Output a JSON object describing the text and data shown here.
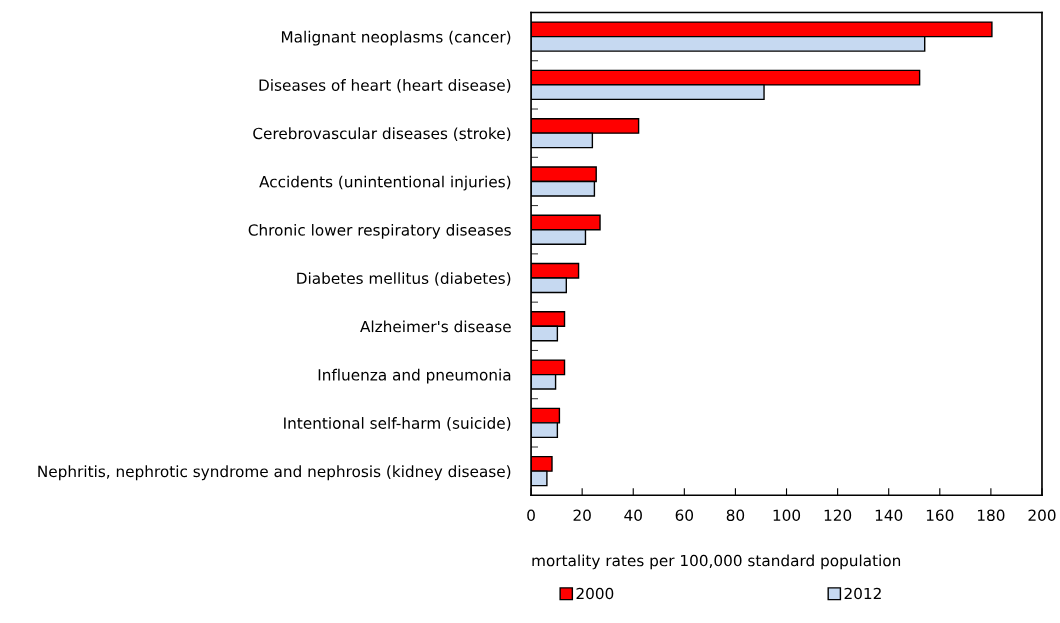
{
  "chart_data": {
    "type": "bar",
    "orientation": "horizontal",
    "xlabel": "mortality rates per 100,000 standard population",
    "categories": [
      "Malignant neoplasms (cancer)",
      "Diseases of heart (heart disease)",
      "Cerebrovascular diseases (stroke)",
      "Accidents (unintentional injuries)",
      "Chronic lower respiratory diseases",
      "Diabetes mellitus (diabetes)",
      "Alzheimer's disease",
      "Influenza and pneumonia",
      "Intentional self-harm (suicide)",
      "Nephritis, nephrotic syndrome and nephrosis (kidney disease)"
    ],
    "series": [
      {
        "name": "2000",
        "color": "#ff0000",
        "values": [
          180.4,
          152.1,
          42.1,
          25.5,
          27.0,
          18.6,
          13.1,
          13.1,
          11.1,
          8.2
        ]
      },
      {
        "name": "2012",
        "color": "#c6d9f1",
        "values": [
          154.1,
          91.2,
          24.0,
          24.8,
          21.3,
          13.8,
          10.3,
          9.6,
          10.3,
          6.2
        ]
      }
    ],
    "xlim": [
      0,
      200
    ],
    "xticks": [
      0,
      20,
      40,
      60,
      80,
      100,
      120,
      140,
      160,
      180,
      200
    ],
    "grid": false,
    "legend": "bottom"
  }
}
